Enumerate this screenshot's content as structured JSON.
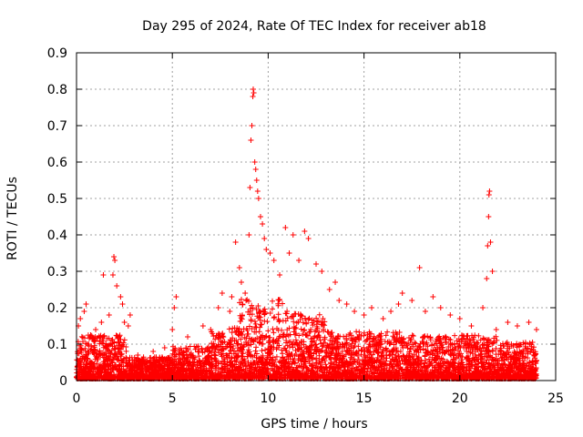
{
  "chart_data": {
    "type": "scatter",
    "title": "Day 295 of 2024, Rate Of TEC Index for receiver ab18",
    "xlabel": "GPS time / hours",
    "ylabel": "ROTI / TECUs",
    "xlim": [
      0,
      25
    ],
    "ylim": [
      0,
      0.9
    ],
    "xticks": [
      "0",
      "5",
      "10",
      "15",
      "20",
      "25"
    ],
    "yticks": [
      "0",
      "0.1",
      "0.2",
      "0.3",
      "0.4",
      "0.5",
      "0.6",
      "0.7",
      "0.8",
      "0.9"
    ],
    "grid": true,
    "marker": "+",
    "color": "#ff0000",
    "series": [
      {
        "name": "ROTI",
        "points": [
          [
            0.1,
            0.15
          ],
          [
            0.2,
            0.17
          ],
          [
            0.4,
            0.19
          ],
          [
            0.5,
            0.21
          ],
          [
            0.7,
            0.12
          ],
          [
            1.0,
            0.14
          ],
          [
            1.3,
            0.16
          ],
          [
            1.4,
            0.29
          ],
          [
            1.7,
            0.18
          ],
          [
            1.9,
            0.29
          ],
          [
            1.95,
            0.34
          ],
          [
            2.0,
            0.33
          ],
          [
            2.1,
            0.26
          ],
          [
            2.3,
            0.23
          ],
          [
            2.4,
            0.21
          ],
          [
            2.5,
            0.16
          ],
          [
            2.7,
            0.15
          ],
          [
            2.8,
            0.18
          ],
          [
            3.2,
            0.07
          ],
          [
            4.0,
            0.08
          ],
          [
            4.6,
            0.09
          ],
          [
            5.0,
            0.14
          ],
          [
            5.1,
            0.2
          ],
          [
            5.2,
            0.23
          ],
          [
            5.8,
            0.12
          ],
          [
            6.6,
            0.15
          ],
          [
            7.0,
            0.14
          ],
          [
            7.4,
            0.2
          ],
          [
            7.6,
            0.24
          ],
          [
            8.0,
            0.19
          ],
          [
            8.1,
            0.23
          ],
          [
            8.3,
            0.38
          ],
          [
            8.5,
            0.31
          ],
          [
            8.6,
            0.27
          ],
          [
            8.8,
            0.24
          ],
          [
            9.0,
            0.4
          ],
          [
            9.05,
            0.53
          ],
          [
            9.1,
            0.66
          ],
          [
            9.15,
            0.7
          ],
          [
            9.2,
            0.78
          ],
          [
            9.22,
            0.8
          ],
          [
            9.25,
            0.79
          ],
          [
            9.3,
            0.6
          ],
          [
            9.35,
            0.58
          ],
          [
            9.4,
            0.55
          ],
          [
            9.45,
            0.52
          ],
          [
            9.5,
            0.5
          ],
          [
            9.6,
            0.45
          ],
          [
            9.7,
            0.43
          ],
          [
            9.8,
            0.39
          ],
          [
            9.9,
            0.36
          ],
          [
            10.1,
            0.35
          ],
          [
            10.3,
            0.33
          ],
          [
            10.6,
            0.29
          ],
          [
            10.9,
            0.42
          ],
          [
            11.1,
            0.35
          ],
          [
            11.3,
            0.4
          ],
          [
            11.6,
            0.33
          ],
          [
            11.9,
            0.41
          ],
          [
            12.1,
            0.39
          ],
          [
            12.5,
            0.32
          ],
          [
            12.8,
            0.3
          ],
          [
            13.2,
            0.25
          ],
          [
            13.5,
            0.27
          ],
          [
            13.7,
            0.22
          ],
          [
            14.1,
            0.21
          ],
          [
            14.5,
            0.19
          ],
          [
            15.0,
            0.18
          ],
          [
            15.4,
            0.2
          ],
          [
            16.0,
            0.17
          ],
          [
            16.4,
            0.19
          ],
          [
            16.8,
            0.21
          ],
          [
            17.0,
            0.24
          ],
          [
            17.5,
            0.22
          ],
          [
            17.9,
            0.31
          ],
          [
            18.2,
            0.19
          ],
          [
            18.6,
            0.23
          ],
          [
            19.0,
            0.2
          ],
          [
            19.5,
            0.18
          ],
          [
            20.0,
            0.17
          ],
          [
            20.6,
            0.15
          ],
          [
            21.2,
            0.2
          ],
          [
            21.4,
            0.28
          ],
          [
            21.45,
            0.37
          ],
          [
            21.5,
            0.45
          ],
          [
            21.52,
            0.51
          ],
          [
            21.55,
            0.52
          ],
          [
            21.6,
            0.38
          ],
          [
            21.7,
            0.3
          ],
          [
            21.9,
            0.14
          ],
          [
            22.5,
            0.16
          ],
          [
            23.0,
            0.15
          ],
          [
            23.6,
            0.16
          ],
          [
            24.0,
            0.14
          ]
        ]
      }
    ],
    "density_note": "Dense band of markers from 0 to ~0.1 TECUs across 0-24 h is generated by the drawing script."
  }
}
